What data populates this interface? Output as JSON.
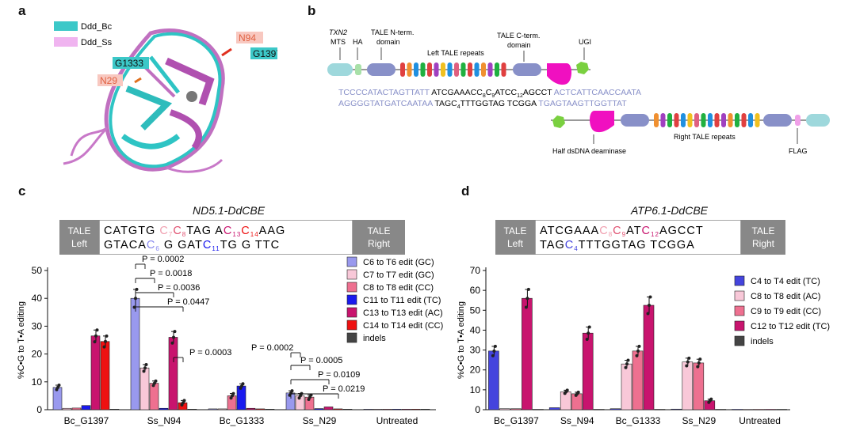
{
  "panels": {
    "a": "a",
    "b": "b",
    "c": "c",
    "d": "d"
  },
  "panel_a": {
    "legend": [
      {
        "label": "Ddd_Bc",
        "color": "#3cc8c8"
      },
      {
        "label": "Ddd_Ss",
        "color": "#f0b4f0"
      }
    ],
    "labels": {
      "n94": "N94",
      "g1397": "G1397",
      "g1333": "G1333",
      "n29": "N29"
    }
  },
  "panel_b": {
    "txn2": "TXN2",
    "mts": "MTS",
    "ha": "HA",
    "tale_n_1": "TALE N-term.",
    "tale_n_2": "domain",
    "tale_c_1": "TALE C-term.",
    "tale_c_2": "domain",
    "ugi": "UGI",
    "left_repeats": "Left TALE repeats",
    "right_repeats": "Right TALE repeats",
    "half_deaminase": "Half dsDNA deaminase",
    "flag": "FLAG",
    "seq_top": {
      "left": "TCCCCATACTAGTTATT",
      "mid": "ATCGAAAC",
      "c8": "C",
      "c8n": "8",
      "c9": "C",
      "c9n": "9",
      "mid2": "ATC",
      "c12": "C",
      "c12n": "12",
      "mid3": "AGCCT",
      "right": "ACTCATTCAACCAATA"
    },
    "seq_bot": {
      "left": "AGGGGTATGATCAATAA",
      "mid": "TAGC",
      "c4n": "4",
      "mid2": "TTTGGTAG",
      "mid3": "TCGGA",
      "right": "TGAGTAAGTTGGTTAT"
    }
  },
  "panel_c": {
    "title": "ND5.1-DdCBE",
    "tale_left": [
      "TALE",
      "Left"
    ],
    "tale_right": [
      "TALE",
      "Right"
    ],
    "ylabel": "%C•G to T•A editing",
    "legend": [
      "C6 to T6 edit (GC)",
      "C7 to T7 edit (GC)",
      "C8 to T8 edit (CC)",
      "C11 to T11 edit (TC)",
      "C13 to T13 edit (AC)",
      "C14 to T14 edit (CC)",
      "indels"
    ],
    "pvalues": [
      "P = 0.0002",
      "P = 0.0018",
      "P = 0.0036",
      "P = 0.0447",
      "P = 0.0003",
      "P = 0.0002",
      "P = 0.0005",
      "P = 0.0109",
      "P = 0.0219"
    ]
  },
  "panel_d": {
    "title": "ATP6.1-DdCBE",
    "tale_left": [
      "TALE",
      "Left"
    ],
    "tale_right": [
      "TALE",
      "Right"
    ],
    "ylabel": "%C•G to T•A editing",
    "legend": [
      "C4 to T4 edit (TC)",
      "C8 to T8 edit (AC)",
      "C9 to T9 edit (CC)",
      "C12 to T12 edit (TC)",
      "indels"
    ]
  },
  "chart_data": [
    {
      "type": "bar",
      "title": "ND5.1-DdCBE",
      "ylabel": "%C•G to T•A editing",
      "ylim": [
        0,
        50
      ],
      "yticks": [
        0,
        10,
        20,
        30,
        40,
        50
      ],
      "categories": [
        "Bc_G1397",
        "Ss_N94",
        "Bc_G1333",
        "Ss_N29",
        "Untreated"
      ],
      "series": [
        {
          "name": "C6 to T6 edit (GC)",
          "color": "#9999ee",
          "values": [
            8,
            40,
            0.3,
            6,
            0.2
          ]
        },
        {
          "name": "C7 to T7 edit (GC)",
          "color": "#f8c8d8",
          "values": [
            0.5,
            15,
            0.3,
            5,
            0.2
          ]
        },
        {
          "name": "C8 to T8 edit (CC)",
          "color": "#ee7090",
          "values": [
            0.6,
            9.5,
            5,
            4.5,
            0.2
          ]
        },
        {
          "name": "C11 to T11 edit (TC)",
          "color": "#1a1aee",
          "values": [
            1.5,
            0.5,
            8.5,
            0.4,
            0.2
          ]
        },
        {
          "name": "C13 to T13 edit (AC)",
          "color": "#c8146e",
          "values": [
            26.5,
            26,
            0.5,
            1,
            0.2
          ]
        },
        {
          "name": "C14 to T14 edit (CC)",
          "color": "#ee1111",
          "values": [
            24.5,
            2.5,
            0.3,
            0.3,
            0.2
          ]
        },
        {
          "name": "indels",
          "color": "#444444",
          "values": [
            0.2,
            0.2,
            0.2,
            0.2,
            0.2
          ]
        }
      ]
    },
    {
      "type": "bar",
      "title": "ATP6.1-DdCBE",
      "ylabel": "%C•G to T•A editing",
      "ylim": [
        0,
        70
      ],
      "yticks": [
        0,
        10,
        20,
        30,
        40,
        50,
        60,
        70
      ],
      "categories": [
        "Bc_G1397",
        "Ss_N94",
        "Bc_G1333",
        "Ss_N29",
        "Untreated"
      ],
      "series": [
        {
          "name": "C4 to T4 edit (TC)",
          "color": "#4444dd",
          "values": [
            29.5,
            1,
            0.5,
            0.3,
            0.2
          ]
        },
        {
          "name": "C8 to T8 edit (AC)",
          "color": "#f8c8d8",
          "values": [
            0.5,
            9,
            23,
            24,
            0.2
          ]
        },
        {
          "name": "C9 to T9 edit (CC)",
          "color": "#ee7090",
          "values": [
            0.5,
            8,
            29.5,
            23.5,
            0.2
          ]
        },
        {
          "name": "C12 to T12 edit (TC)",
          "color": "#c8146e",
          "values": [
            56,
            38.5,
            52.5,
            4.5,
            0.2
          ]
        },
        {
          "name": "indels",
          "color": "#444444",
          "values": [
            0.2,
            0.2,
            0.2,
            0.2,
            0.2
          ]
        }
      ]
    }
  ]
}
